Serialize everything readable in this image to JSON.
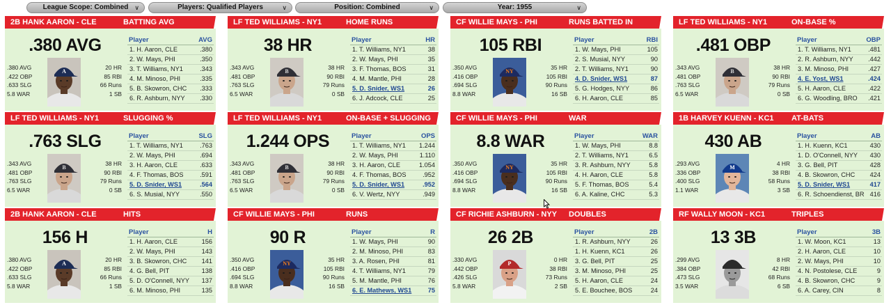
{
  "filters": [
    {
      "label": "League Scope: Combined"
    },
    {
      "label": "Players: Qualified Players"
    },
    {
      "label": "Position: Combined"
    },
    {
      "label": "Year: 1955"
    }
  ],
  "cards": [
    {
      "player": "2B HANK AARON - CLE",
      "category": "BATTING AVG",
      "big": ".380 AVG",
      "left": [
        ".380 AVG",
        ".422 OBP",
        ".633 SLG",
        "5.8 WAR"
      ],
      "right": [
        "20 HR",
        "85 RBI",
        "66 Runs",
        "1 SB"
      ],
      "photo": "aaron",
      "col": "AVG",
      "rows": [
        {
          "name": "1. H. Aaron, CLE",
          "value": ".380"
        },
        {
          "name": "2. W. Mays, PHI",
          "value": ".350"
        },
        {
          "name": "3. T. Williams, NY1",
          "value": ".343"
        },
        {
          "name": "4. M. Minoso, PHI",
          "value": ".335"
        },
        {
          "name": "5. B. Skowron, CHC",
          "value": ".333"
        },
        {
          "name": "6. R. Ashburn, NYY",
          "value": ".330"
        }
      ]
    },
    {
      "player": "LF TED WILLIAMS - NY1",
      "category": "HOME RUNS",
      "big": "38 HR",
      "left": [
        ".343 AVG",
        ".481 OBP",
        ".763 SLG",
        "6.5 WAR"
      ],
      "right": [
        "38 HR",
        "90 RBI",
        "79 Runs",
        "0 SB"
      ],
      "photo": "williams",
      "col": "HR",
      "rows": [
        {
          "name": "1. T. Williams, NY1",
          "value": "38"
        },
        {
          "name": "2. W. Mays, PHI",
          "value": "35"
        },
        {
          "name": "3. F. Thomas, BOS",
          "value": "31"
        },
        {
          "name": "4. M. Mantle, PHI",
          "value": "28"
        },
        {
          "name": "5. D. Snider, WS1",
          "value": "26",
          "hl": true
        },
        {
          "name": "6. J. Adcock, CLE",
          "value": "25"
        }
      ]
    },
    {
      "player": "CF WILLIE MAYS - PHI",
      "category": "RUNS BATTED IN",
      "big": "105 RBI",
      "left": [
        ".350 AVG",
        ".416 OBP",
        ".694 SLG",
        "8.8 WAR"
      ],
      "right": [
        "35 HR",
        "105 RBI",
        "90 Runs",
        "16 SB"
      ],
      "photo": "mays",
      "col": "RBI",
      "rows": [
        {
          "name": "1. W. Mays, PHI",
          "value": "105"
        },
        {
          "name": "2. S. Musial, NYY",
          "value": "90"
        },
        {
          "name": "2. T. Williams, NY1",
          "value": "90"
        },
        {
          "name": "4. D. Snider, WS1",
          "value": "87",
          "hl": true
        },
        {
          "name": "5. G. Hodges, NYY",
          "value": "86"
        },
        {
          "name": "6. H. Aaron, CLE",
          "value": "85"
        }
      ]
    },
    {
      "player": "LF TED WILLIAMS - NY1",
      "category": "ON-BASE %",
      "big": ".481 OBP",
      "left": [
        ".343 AVG",
        ".481 OBP",
        ".763 SLG",
        "6.5 WAR"
      ],
      "right": [
        "38 HR",
        "90 RBI",
        "79 Runs",
        "0 SB"
      ],
      "photo": "williams",
      "col": "OBP",
      "rows": [
        {
          "name": "1. T. Williams, NY1",
          "value": ".481"
        },
        {
          "name": "2. R. Ashburn, NYY",
          "value": ".442"
        },
        {
          "name": "3. M. Minoso, PHI",
          "value": ".427"
        },
        {
          "name": "4. E. Yost, WS1",
          "value": ".424",
          "hl": true
        },
        {
          "name": "5. H. Aaron, CLE",
          "value": ".422"
        },
        {
          "name": "6. G. Woodling, BRO",
          "value": ".421"
        }
      ]
    },
    {
      "player": "LF TED WILLIAMS - NY1",
      "category": "SLUGGING %",
      "big": ".763 SLG",
      "left": [
        ".343 AVG",
        ".481 OBP",
        ".763 SLG",
        "6.5 WAR"
      ],
      "right": [
        "38 HR",
        "90 RBI",
        "79 Runs",
        "0 SB"
      ],
      "photo": "williams",
      "col": "SLG",
      "rows": [
        {
          "name": "1. T. Williams, NY1",
          "value": ".763"
        },
        {
          "name": "2. W. Mays, PHI",
          "value": ".694"
        },
        {
          "name": "3. H. Aaron, CLE",
          "value": ".633"
        },
        {
          "name": "4. F. Thomas, BOS",
          "value": ".591"
        },
        {
          "name": "5. D. Snider, WS1",
          "value": ".564",
          "hl": true
        },
        {
          "name": "6. S. Musial, NYY",
          "value": ".550"
        }
      ]
    },
    {
      "player": "LF TED WILLIAMS - NY1",
      "category": "ON-BASE + SLUGGING",
      "big": "1.244 OPS",
      "left": [
        ".343 AVG",
        ".481 OBP",
        ".763 SLG",
        "6.5 WAR"
      ],
      "right": [
        "38 HR",
        "90 RBI",
        "79 Runs",
        "0 SB"
      ],
      "photo": "williams",
      "col": "OPS",
      "rows": [
        {
          "name": "1. T. Williams, NY1",
          "value": "1.244"
        },
        {
          "name": "2. W. Mays, PHI",
          "value": "1.110"
        },
        {
          "name": "3. H. Aaron, CLE",
          "value": "1.054"
        },
        {
          "name": "4. F. Thomas, BOS",
          "value": ".952"
        },
        {
          "name": "5. D. Snider, WS1",
          "value": ".952",
          "hl": true
        },
        {
          "name": "6. V. Wertz, NYY",
          "value": ".949"
        }
      ]
    },
    {
      "player": "CF WILLIE MAYS - PHI",
      "category": "WAR",
      "big": "8.8 WAR",
      "left": [
        ".350 AVG",
        ".416 OBP",
        ".694 SLG",
        "8.8 WAR"
      ],
      "right": [
        "35 HR",
        "105 RBI",
        "90 Runs",
        "16 SB"
      ],
      "photo": "mays",
      "col": "WAR",
      "rows": [
        {
          "name": "1. W. Mays, PHI",
          "value": "8.8"
        },
        {
          "name": "2. T. Williams, NY1",
          "value": "6.5"
        },
        {
          "name": "3. R. Ashburn, NYY",
          "value": "5.8"
        },
        {
          "name": "4. H. Aaron, CLE",
          "value": "5.8"
        },
        {
          "name": "5. F. Thomas, BOS",
          "value": "5.4"
        },
        {
          "name": "6. A. Kaline, CHC",
          "value": "5.3"
        }
      ]
    },
    {
      "player": "1B HARVEY KUENN - KC1",
      "category": "AT-BATS",
      "big": "430 AB",
      "left": [
        ".293 AVG",
        ".336 OBP",
        ".400 SLG",
        "1.1 WAR"
      ],
      "right": [
        "4 HR",
        "38 RBI",
        "58 Runs",
        "3 SB"
      ],
      "photo": "kuenn",
      "col": "AB",
      "rows": [
        {
          "name": "1. H. Kuenn, KC1",
          "value": "430"
        },
        {
          "name": "1. D. O'Connell, NYY",
          "value": "430"
        },
        {
          "name": "3. G. Bell, PIT",
          "value": "428"
        },
        {
          "name": "4. B. Skowron, CHC",
          "value": "424"
        },
        {
          "name": "5. D. Snider, WS1",
          "value": "417",
          "hl": true
        },
        {
          "name": "6. R. Schoendienst, BRO",
          "value": "416"
        }
      ]
    },
    {
      "player": "2B HANK AARON - CLE",
      "category": "HITS",
      "big": "156 H",
      "left": [
        ".380 AVG",
        ".422 OBP",
        ".633 SLG",
        "5.8 WAR"
      ],
      "right": [
        "20 HR",
        "85 RBI",
        "66 Runs",
        "1 SB"
      ],
      "photo": "aaron",
      "col": "H",
      "rows": [
        {
          "name": "1. H. Aaron, CLE",
          "value": "156"
        },
        {
          "name": "2. W. Mays, PHI",
          "value": "143"
        },
        {
          "name": "3. B. Skowron, CHC",
          "value": "141"
        },
        {
          "name": "4. G. Bell, PIT",
          "value": "138"
        },
        {
          "name": "5. D. O'Connell, NYY",
          "value": "137"
        },
        {
          "name": "6. M. Minoso, PHI",
          "value": "135"
        }
      ]
    },
    {
      "player": "CF WILLIE MAYS - PHI",
      "category": "RUNS",
      "big": "90 R",
      "left": [
        ".350 AVG",
        ".416 OBP",
        ".694 SLG",
        "8.8 WAR"
      ],
      "right": [
        "35 HR",
        "105 RBI",
        "90 Runs",
        "16 SB"
      ],
      "photo": "mays",
      "col": "R",
      "rows": [
        {
          "name": "1. W. Mays, PHI",
          "value": "90"
        },
        {
          "name": "2. M. Minoso, PHI",
          "value": "83"
        },
        {
          "name": "3. A. Rosen, PHI",
          "value": "81"
        },
        {
          "name": "4. T. Williams, NY1",
          "value": "79"
        },
        {
          "name": "5. M. Mantle, PHI",
          "value": "76"
        },
        {
          "name": "6. E. Mathews, WS1",
          "value": "75",
          "hl": true
        }
      ]
    },
    {
      "player": "CF RICHIE ASHBURN - NYY",
      "category": "DOUBLES",
      "big": "26 2B",
      "left": [
        ".330 AVG",
        ".442 OBP",
        ".426 SLG",
        "5.8 WAR"
      ],
      "right": [
        "0 HR",
        "38 RBI",
        "73 Runs",
        "2 SB"
      ],
      "photo": "ashburn",
      "col": "2B",
      "rows": [
        {
          "name": "1. R. Ashburn, NYY",
          "value": "26"
        },
        {
          "name": "1. H. Kuenn, KC1",
          "value": "26"
        },
        {
          "name": "3. G. Bell, PIT",
          "value": "25"
        },
        {
          "name": "3. M. Minoso, PHI",
          "value": "25"
        },
        {
          "name": "5. H. Aaron, CLE",
          "value": "24"
        },
        {
          "name": "5. E. Bouchee, BOS",
          "value": "24"
        }
      ]
    },
    {
      "player": "RF WALLY MOON - KC1",
      "category": "TRIPLES",
      "big": "13 3B",
      "left": [
        ".299 AVG",
        ".384 OBP",
        ".473 SLG",
        "3.5 WAR"
      ],
      "right": [
        "8 HR",
        "42 RBI",
        "68 Runs",
        "6 SB"
      ],
      "photo": "moon",
      "col": "3B",
      "rows": [
        {
          "name": "1. W. Moon, KC1",
          "value": "13"
        },
        {
          "name": "2. H. Aaron, CLE",
          "value": "10"
        },
        {
          "name": "2. W. Mays, PHI",
          "value": "10"
        },
        {
          "name": "4. N. Postolese, CLE",
          "value": "9"
        },
        {
          "name": "4. B. Skowron, CHC",
          "value": "9"
        },
        {
          "name": "6. A. Carey, CIN",
          "value": "8"
        }
      ]
    }
  ],
  "table_header_label": "Player",
  "photo_styles": {
    "aaron": {
      "bg": "#c9c4bc",
      "skin": "#5a3b28",
      "cap": "#1d2d55",
      "logo": "A",
      "logo_color": "#ffffff",
      "shirt": "#e8e8e8",
      "grey": false
    },
    "williams": {
      "bg": "#cfcac3",
      "skin": "#caa58b",
      "cap": "#2f2f36",
      "logo": "B",
      "logo_color": "#d8d8d8",
      "shirt": "#d9d9d9",
      "grey": false
    },
    "mays": {
      "bg": "#3b5d9a",
      "skin": "#4a2e1e",
      "cap": "#1c2a60",
      "logo": "NY",
      "logo_color": "#f07d1d",
      "shirt": "#e8e8e8",
      "grey": false
    },
    "kuenn": {
      "bg": "#5d86b6",
      "skin": "#e3b69a",
      "cap": "#113a8c",
      "logo": "M",
      "logo_color": "#ffffff",
      "shirt": "#e8e8e8",
      "grey": false
    },
    "ashburn": {
      "bg": "#d9d9d9",
      "skin": "#d9a187",
      "cap": "#b22a2a",
      "logo": "P",
      "logo_color": "#ffffff",
      "shirt": "#f2f2f2",
      "grey": false
    },
    "moon": {
      "bg": "#e6e6e6",
      "skin": "#9a9a9a",
      "cap": "#2b2b2b",
      "logo": "",
      "logo_color": "#ffffff",
      "shirt": "#dcdcdc",
      "grey": true
    }
  }
}
